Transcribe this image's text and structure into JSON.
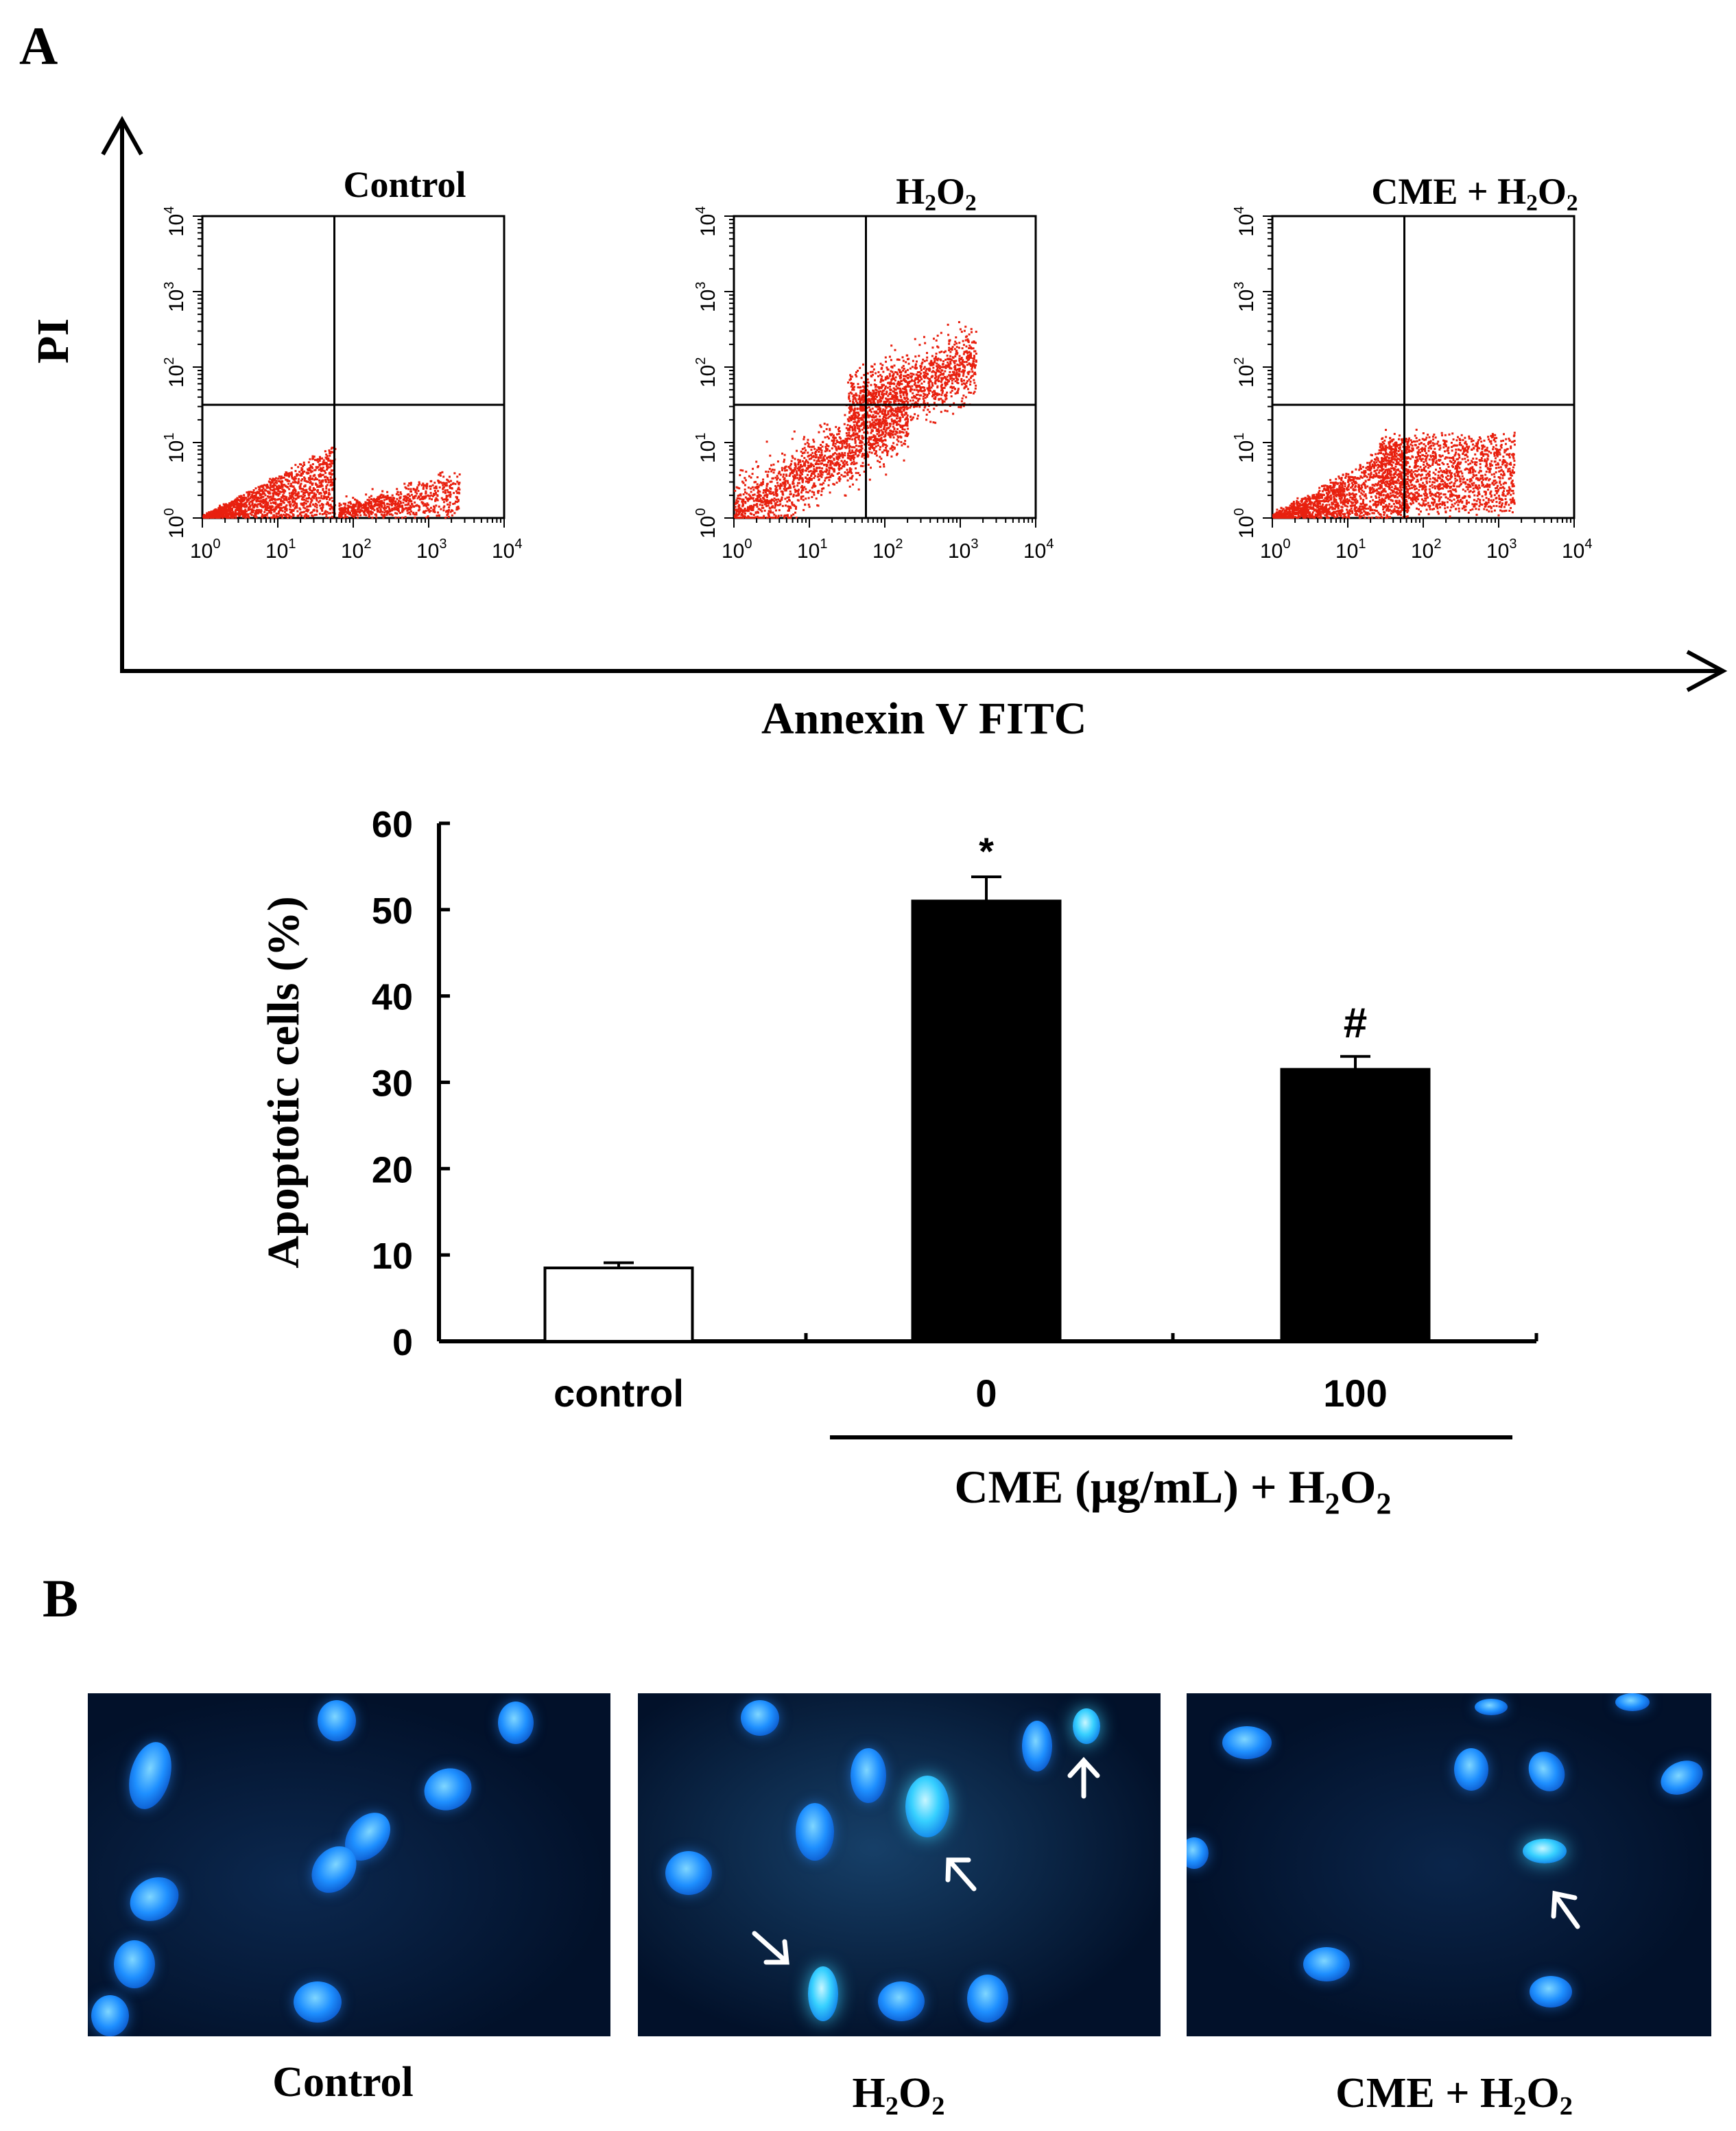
{
  "panel_a": {
    "letter": "A",
    "y_axis_label": "PI",
    "x_axis_label": "Annexin V FITC",
    "flow_plots": [
      {
        "title": "Control",
        "title_sub": "",
        "title_tail": ""
      },
      {
        "title": "H",
        "title_sub": "2",
        "title_mid": "O",
        "title_sub2": "2",
        "title_tail": ""
      },
      {
        "title": "CME + H",
        "title_sub": "2",
        "title_mid": "O",
        "title_sub2": "2",
        "title_tail": ""
      }
    ],
    "flow_tick_labels": [
      "10",
      "10",
      "10",
      "10",
      "10"
    ],
    "flow_tick_exps": [
      "0",
      "1",
      "2",
      "3",
      "4"
    ],
    "scatter_color": "#e8200f"
  },
  "chart_data": {
    "type": "bar",
    "categories": [
      "control",
      "0",
      "100"
    ],
    "values": [
      8.5,
      51,
      31.5
    ],
    "errors": [
      0.6,
      2.8,
      1.5
    ],
    "bar_fill": [
      "#ffffff",
      "#000000",
      "#000000"
    ],
    "significance": [
      "",
      "*",
      "#"
    ],
    "ylabel": "Apoptotic cells (%)",
    "ylim": [
      0,
      60
    ],
    "yticks": [
      0,
      10,
      20,
      30,
      40,
      50,
      60
    ],
    "group_label_pre": "CME (μg/mL) + H",
    "group_label_sub1": "2",
    "group_label_mid": "O",
    "group_label_sub2": "2"
  },
  "panel_b": {
    "letter": "B",
    "images": [
      {
        "label": "Control",
        "label_sub": "",
        "label_mid": "",
        "label_sub2": ""
      },
      {
        "label": "H",
        "label_sub": "2",
        "label_mid": "O",
        "label_sub2": "2"
      },
      {
        "label": "CME + H",
        "label_sub": "2",
        "label_mid": "O",
        "label_sub2": "2"
      }
    ],
    "nucleus_color": "#1e8fff",
    "arrow_color": "#ffffff"
  }
}
